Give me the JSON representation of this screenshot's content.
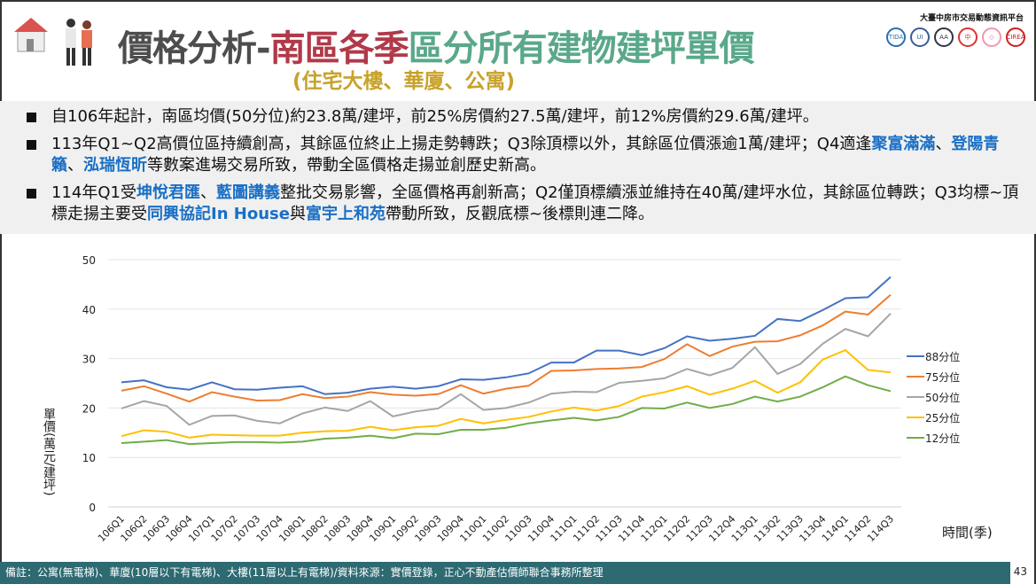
{
  "header": {
    "title_part1": "價格分析-",
    "title_part2": "南區各季",
    "title_part3": "區分所有建物建坪單價",
    "subtitle": "(住宅大樓、華廈、公寓)",
    "org_name": "大臺中房市交易動態資訊平台",
    "logos": [
      "TIDA",
      "UI",
      "AA",
      "中",
      "◇",
      "CIREA"
    ]
  },
  "bullets": [
    [
      {
        "t": "自106年起計，南區均價(50分位)約23.8萬/建坪，前25%房價約27.5萬/建坪，前12%房價約29.6萬/建坪。"
      }
    ],
    [
      {
        "t": "113年Q1~Q2高價位區持續創高，其餘區位終止上揚走勢轉跌；Q3除頂標以外，其餘區位價漲逾1萬/建坪；Q4適逢"
      },
      {
        "t": "聚富滿滿",
        "h": true
      },
      {
        "t": "、"
      },
      {
        "t": "登陽青籟",
        "h": true
      },
      {
        "t": "、"
      },
      {
        "t": "泓瑞恆昕",
        "h": true
      },
      {
        "t": "等數案進場交易所致，帶動全區價格走揚並創歷史新高。"
      }
    ],
    [
      {
        "t": "114年Q1受"
      },
      {
        "t": "坤悅君匯",
        "h": true
      },
      {
        "t": "、"
      },
      {
        "t": "藍圖講義",
        "h": true
      },
      {
        "t": "整批交易影響，全區價格再創新高；Q2僅頂標續漲並維持在40萬/建坪水位，其餘區位轉跌；Q3均標~頂標走揚主要受"
      },
      {
        "t": "同興協記In House",
        "h": true
      },
      {
        "t": "與"
      },
      {
        "t": "富宇上和苑",
        "h": true
      },
      {
        "t": "帶動所致，反觀底標~後標則連二降。"
      }
    ]
  ],
  "colors": {
    "highlight": "#1a6fc4",
    "footer_bg": "#2d6a72"
  },
  "chart_data": {
    "type": "line",
    "title": "",
    "xlabel": "時間(季)",
    "ylabel": "單價(萬元/建坪)",
    "ylim": [
      0,
      50
    ],
    "yticks": [
      0,
      10,
      20,
      30,
      40,
      50
    ],
    "grid": true,
    "legend_position": "right",
    "categories": [
      "106Q1",
      "106Q2",
      "106Q3",
      "106Q4",
      "107Q1",
      "107Q2",
      "107Q3",
      "107Q4",
      "108Q1",
      "108Q2",
      "108Q3",
      "108Q4",
      "109Q1",
      "109Q2",
      "109Q3",
      "109Q4",
      "110Q1",
      "110Q2",
      "110Q3",
      "110Q4",
      "111Q1",
      "111Q2",
      "111Q3",
      "111Q4",
      "112Q1",
      "112Q2",
      "112Q3",
      "112Q4",
      "113Q1",
      "113Q2",
      "113Q3",
      "113Q4",
      "114Q1",
      "114Q2",
      "114Q3"
    ],
    "series": [
      {
        "name": "88分位",
        "color": "#4472c4",
        "values": [
          25.2,
          25.6,
          24.2,
          23.7,
          25.2,
          23.8,
          23.7,
          24.1,
          24.4,
          22.8,
          23.1,
          23.9,
          24.3,
          23.9,
          24.4,
          25.8,
          25.7,
          26.2,
          27.0,
          29.2,
          29.2,
          31.6,
          31.6,
          30.7,
          32.1,
          34.5,
          33.6,
          34.0,
          34.6,
          38.0,
          37.6,
          39.8,
          42.2,
          42.4,
          46.5
        ]
      },
      {
        "name": "75分位",
        "color": "#ed7d31",
        "values": [
          23.5,
          24.4,
          22.9,
          21.3,
          23.2,
          22.3,
          21.5,
          21.6,
          22.8,
          22.0,
          22.3,
          23.2,
          22.7,
          22.5,
          22.8,
          24.6,
          22.9,
          23.9,
          24.5,
          27.5,
          27.6,
          27.9,
          28.0,
          28.3,
          29.9,
          32.9,
          30.5,
          32.4,
          33.4,
          33.5,
          34.7,
          36.7,
          39.5,
          38.9,
          42.9
        ]
      },
      {
        "name": "50分位",
        "color": "#a5a5a5",
        "values": [
          19.9,
          21.4,
          20.4,
          16.6,
          18.4,
          18.5,
          17.4,
          16.9,
          18.9,
          20.1,
          19.4,
          21.4,
          18.3,
          19.3,
          19.9,
          22.8,
          19.6,
          20.0,
          21.1,
          22.9,
          23.3,
          23.2,
          25.1,
          25.5,
          26.0,
          27.9,
          26.6,
          28.1,
          32.3,
          26.9,
          28.9,
          33.0,
          36.0,
          34.5,
          39.1
        ]
      },
      {
        "name": "25分位",
        "color": "#ffc000",
        "values": [
          14.3,
          15.5,
          15.2,
          14.0,
          14.6,
          14.5,
          14.4,
          14.4,
          15.0,
          15.3,
          15.4,
          16.2,
          15.5,
          16.1,
          16.4,
          17.8,
          16.9,
          17.6,
          18.2,
          19.3,
          20.1,
          19.5,
          20.4,
          22.3,
          23.2,
          24.4,
          22.7,
          23.9,
          25.5,
          23.1,
          25.2,
          29.8,
          31.7,
          27.7,
          27.2
        ]
      },
      {
        "name": "12分位",
        "color": "#70ad47",
        "values": [
          12.9,
          13.2,
          13.5,
          12.7,
          12.9,
          13.1,
          13.1,
          13.0,
          13.2,
          13.8,
          14.0,
          14.4,
          13.9,
          14.8,
          14.7,
          15.6,
          15.6,
          16.0,
          16.9,
          17.5,
          18.0,
          17.5,
          18.2,
          20.0,
          19.9,
          21.1,
          20.0,
          20.8,
          22.3,
          21.3,
          22.3,
          24.2,
          26.4,
          24.6,
          23.4
        ]
      }
    ]
  },
  "footer": {
    "note": "備註：公寓(無電梯)、華廈(10層以下有電梯)、大樓(11層以上有電梯)/資料來源：實價登錄，正心不動產估價師聯合事務所整理",
    "page_number": "43"
  }
}
